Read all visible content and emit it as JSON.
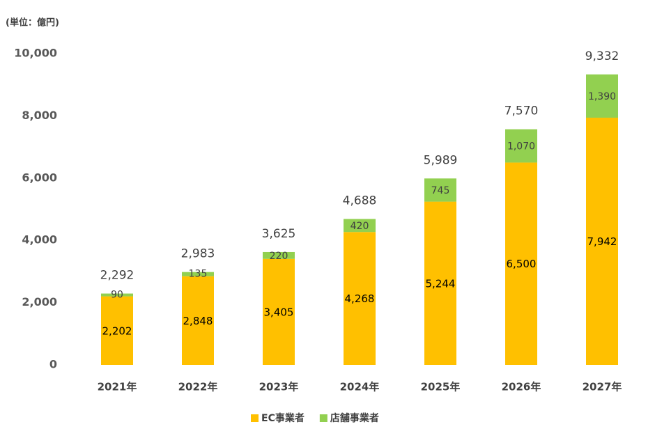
{
  "chart_data": {
    "type": "stacked-bar",
    "unit": "(単位：億円)",
    "categories": [
      "2021年",
      "2022年",
      "2023年",
      "2024年",
      "2025年",
      "2026年",
      "2027年"
    ],
    "series": [
      {
        "name": "EC事業者",
        "color": "#ffc000",
        "values": [
          2202,
          2848,
          3405,
          4268,
          5244,
          6500,
          7942
        ],
        "value_labels": [
          "2,202",
          "2,848",
          "3,405",
          "4,268",
          "5,244",
          "6,500",
          "7,942"
        ]
      },
      {
        "name": "店舗事業者",
        "color": "#92d050",
        "values": [
          90,
          135,
          220,
          420,
          745,
          1070,
          1390
        ],
        "value_labels": [
          "90",
          "135",
          "220",
          "420",
          "745",
          "1,070",
          "1,390"
        ]
      }
    ],
    "totals": [
      2292,
      2983,
      3625,
      4688,
      5989,
      7570,
      9332
    ],
    "total_labels": [
      "2,292",
      "2,983",
      "3,625",
      "4,688",
      "5,989",
      "7,570",
      "9,332"
    ],
    "ylim": [
      0,
      10000
    ],
    "yticks": [
      0,
      {
        "value": 2000,
        "label": "2,000"
      },
      {
        "value": 4000,
        "label": "4,000"
      },
      {
        "value": 6000,
        "label": "6,000"
      },
      {
        "value": 8000,
        "label": "8,000"
      },
      {
        "value": 10000,
        "label": "10,000"
      }
    ],
    "grid": false,
    "legend": "bottom"
  }
}
